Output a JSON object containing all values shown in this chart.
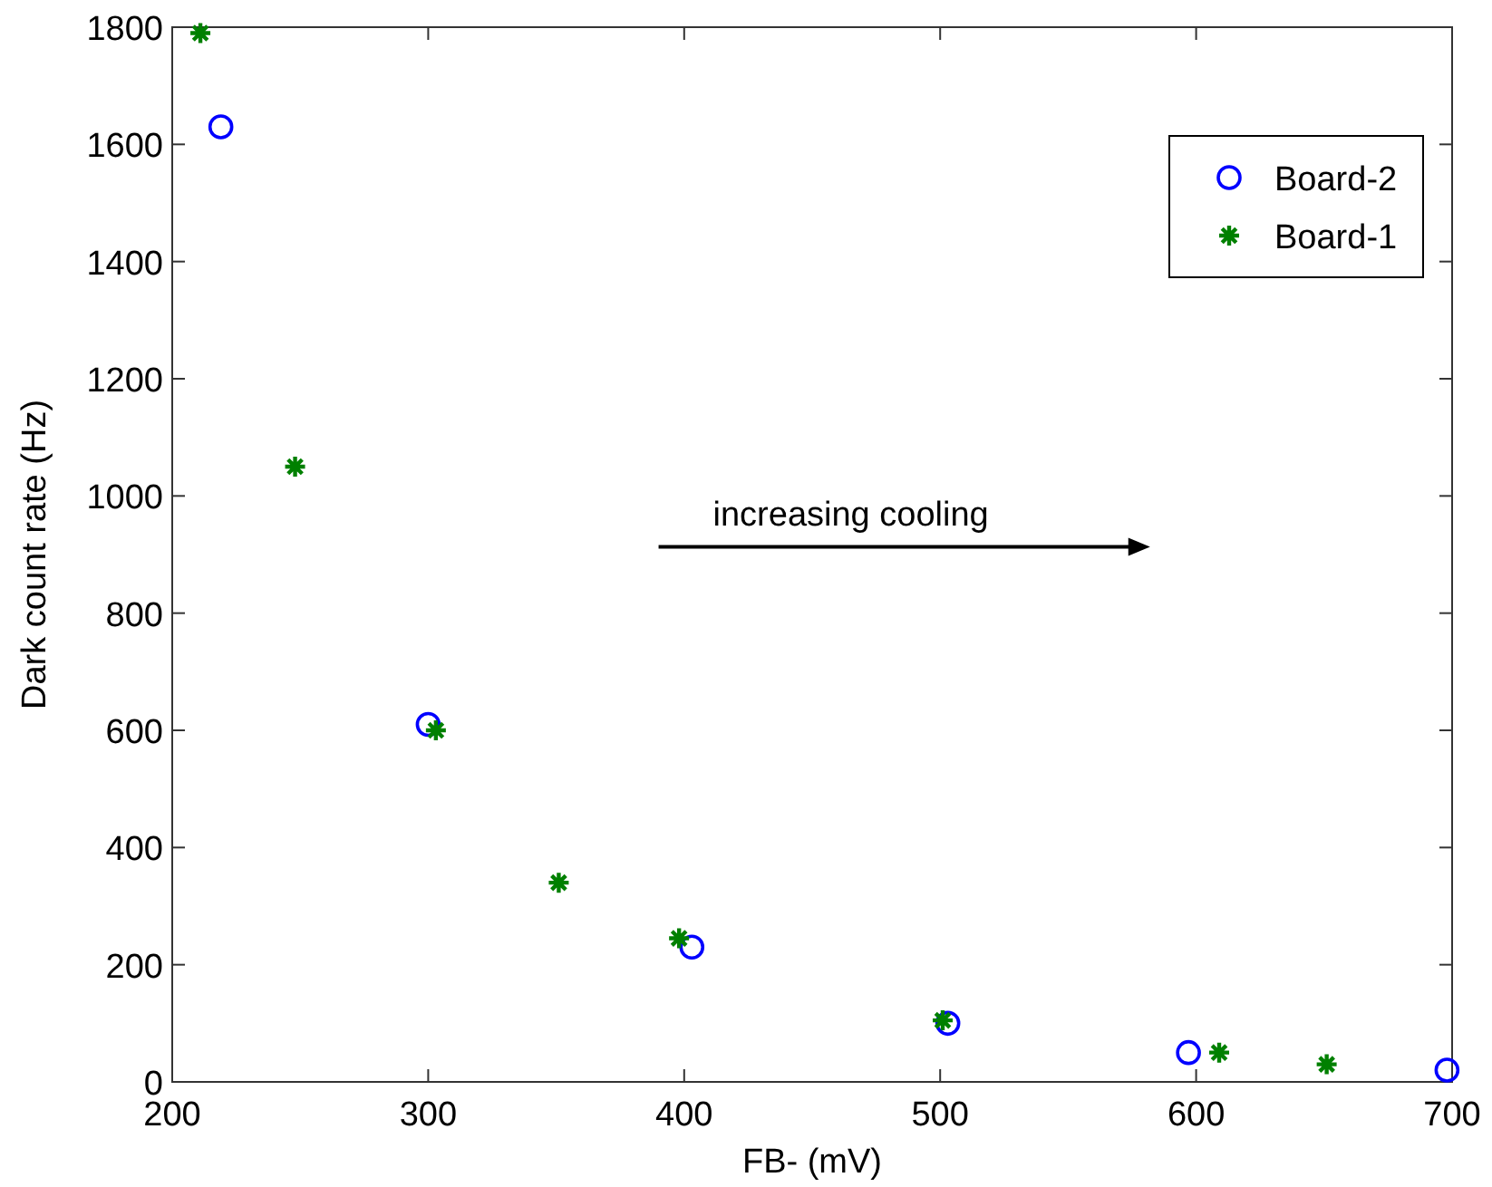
{
  "chart_data": {
    "type": "scatter",
    "xlabel": "FB- (mV)",
    "ylabel": "Dark count rate (Hz)",
    "xlim": [
      200,
      700
    ],
    "ylim": [
      0,
      1800
    ],
    "xticks": [
      200,
      300,
      400,
      500,
      600,
      700
    ],
    "yticks": [
      0,
      200,
      400,
      600,
      800,
      1000,
      1200,
      1400,
      1600,
      1800
    ],
    "grid": false,
    "legend": "top right",
    "annotations": [
      "increasing cooling"
    ],
    "series": [
      {
        "name": "Board-2",
        "color": "#0000ff",
        "marker": "circle",
        "x": [
          219,
          300,
          403,
          503,
          597,
          698
        ],
        "values": [
          1630,
          610,
          230,
          100,
          50,
          20
        ]
      },
      {
        "name": "Board-1",
        "color": "#008000",
        "marker": "cross",
        "x": [
          211,
          248,
          303,
          351,
          398,
          501,
          609,
          651
        ],
        "values": [
          1790,
          1050,
          600,
          340,
          245,
          105,
          50,
          30
        ]
      }
    ]
  }
}
